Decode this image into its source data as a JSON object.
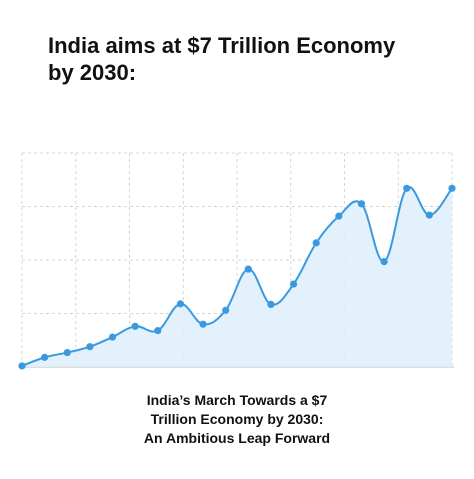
{
  "title_lines": [
    "India aims at $7 Trillion Economy",
    "by 2030:"
  ],
  "caption_lines": [
    "India’s March Towards a $7",
    "Trillion Economy by 2030:",
    "An Ambitious Leap Forward"
  ],
  "chart_data": {
    "type": "area",
    "title": "India aims at $7 Trillion Economy by 2030:",
    "xlabel": "",
    "ylabel": "",
    "ylim": [
      0,
      4
    ],
    "xlim": [
      0,
      19
    ],
    "grid": true,
    "line_color": "#3a9ae0",
    "fill_color": "#ddeefc",
    "grid_color": "#d4d4d4",
    "x": [
      0,
      1,
      2,
      3,
      4,
      5,
      6,
      7,
      8,
      9,
      10,
      11,
      12,
      13,
      14,
      15,
      16,
      17,
      18,
      19
    ],
    "values": [
      0.02,
      0.18,
      0.27,
      0.38,
      0.56,
      0.76,
      0.68,
      1.18,
      0.8,
      1.06,
      1.83,
      1.17,
      1.55,
      2.32,
      2.82,
      3.05,
      1.97,
      3.34,
      2.84,
      3.34
    ]
  }
}
